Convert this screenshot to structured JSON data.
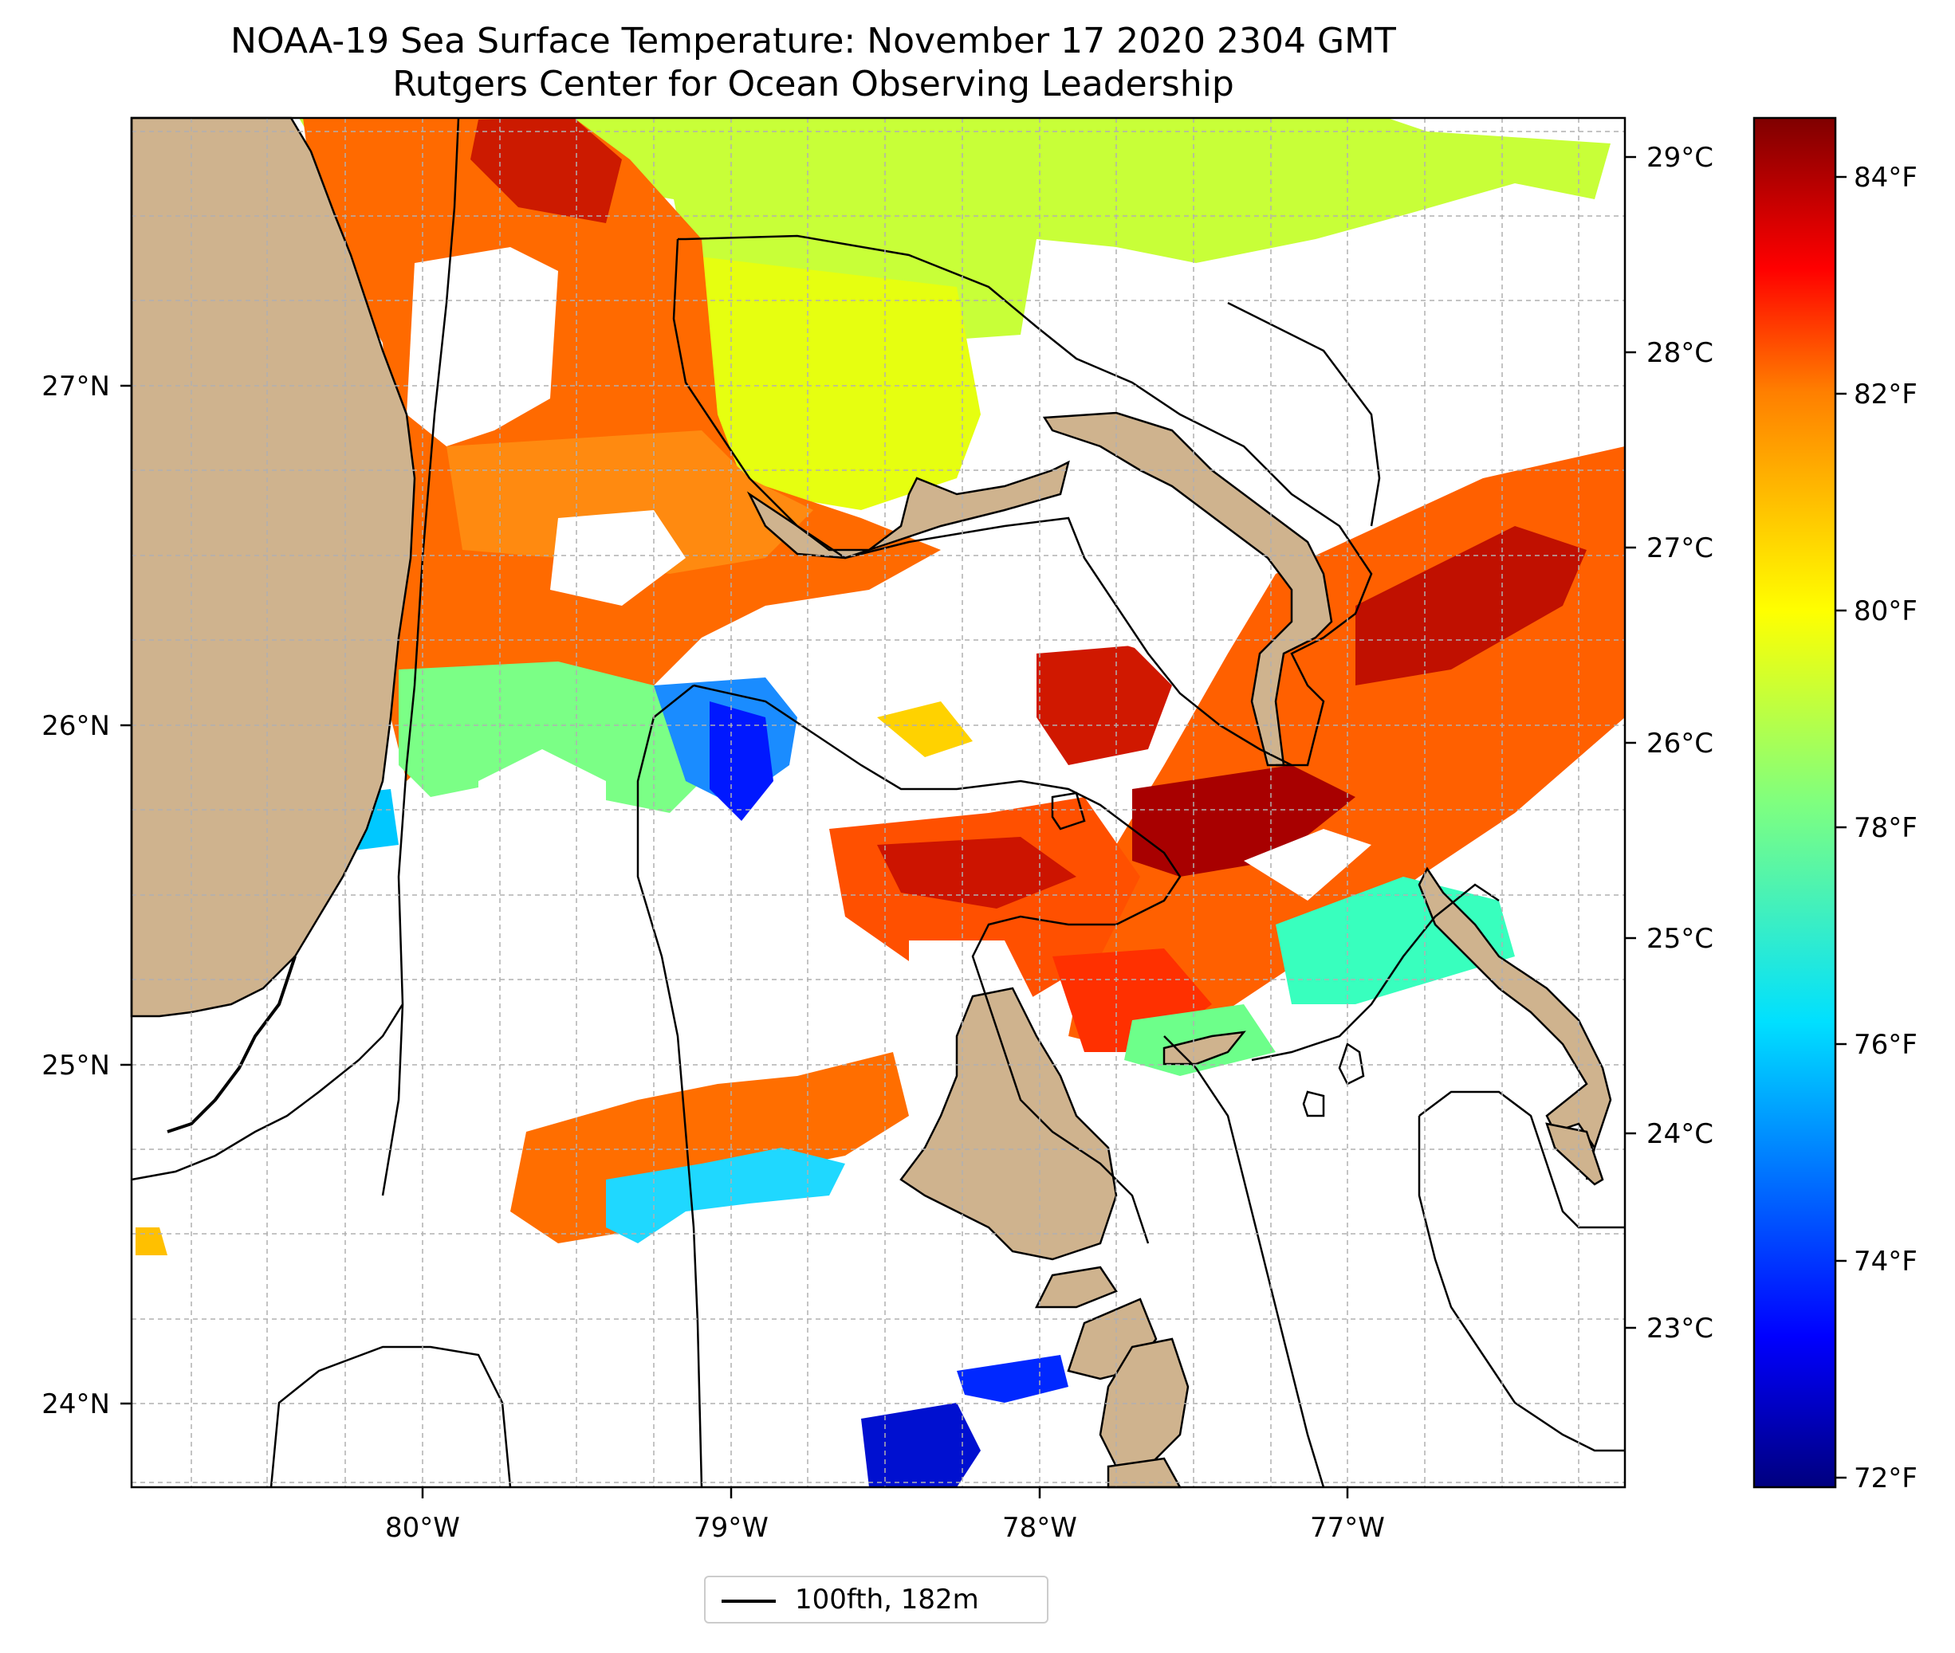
{
  "title": "NOAA-19 Sea Surface Temperature: November 17 2020 2304 GMT",
  "subtitle": "Rutgers Center for Ocean Observing Leadership",
  "axes": {
    "lon_ticks": [
      "80°W",
      "79°W",
      "78°W",
      "77°W"
    ],
    "lat_ticks": [
      "27°N",
      "26°N",
      "25°N",
      "24°N"
    ]
  },
  "colorbar": {
    "colormap": "jet",
    "celsius_ticks": [
      "29°C",
      "28°C",
      "27°C",
      "26°C",
      "25°C",
      "24°C",
      "23°C"
    ],
    "fahrenheit_ticks": [
      "84°F",
      "82°F",
      "80°F",
      "78°F",
      "76°F",
      "74°F",
      "72°F"
    ]
  },
  "legend": {
    "label": "100fth, 182m",
    "line_color": "#000000"
  },
  "colors": {
    "land": "#cfb38e",
    "coast": "#000000",
    "grid": "#b0b0b0",
    "no_data": "#ffffff"
  }
}
